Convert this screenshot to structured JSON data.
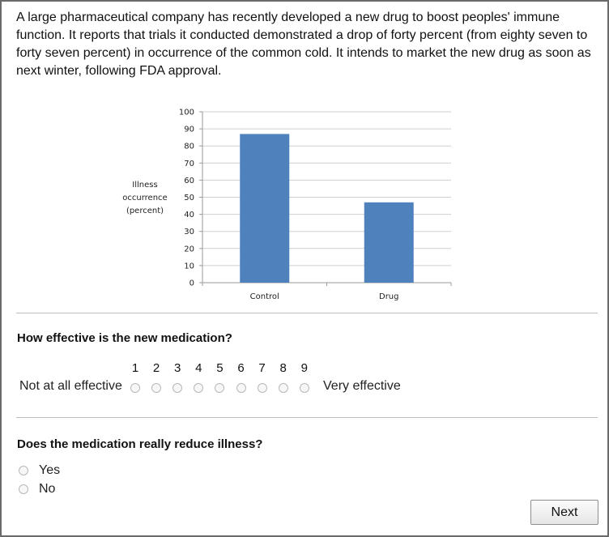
{
  "intro": {
    "text": "A large pharmaceutical company has recently developed a new drug to boost peoples' immune function. It reports that trials it conducted demonstrated a drop of forty percent (from eighty seven to forty seven percent) in occurrence of the common cold. It intends to market the new drug as soon as next winter, following FDA approval."
  },
  "chart_data": {
    "type": "bar",
    "categories": [
      "Control",
      "Drug"
    ],
    "values": [
      87,
      47
    ],
    "title": "",
    "xlabel": "",
    "ylabel_lines": [
      "Illness",
      "occurrence",
      "(percent)"
    ],
    "ylim": [
      0,
      100
    ],
    "yticks": [
      0,
      10,
      20,
      30,
      40,
      50,
      60,
      70,
      80,
      90,
      100
    ],
    "grid": true,
    "bar_color": "#4f81bd"
  },
  "question1": {
    "text": "How effective is the new medication?",
    "scale_numbers": [
      "1",
      "2",
      "3",
      "4",
      "5",
      "6",
      "7",
      "8",
      "9"
    ],
    "left_label": "Not at all effective",
    "right_label": "Very effective"
  },
  "question2": {
    "text": "Does the medication really reduce illness?",
    "options": [
      "Yes",
      "No"
    ]
  },
  "next_button": {
    "label": "Next"
  }
}
